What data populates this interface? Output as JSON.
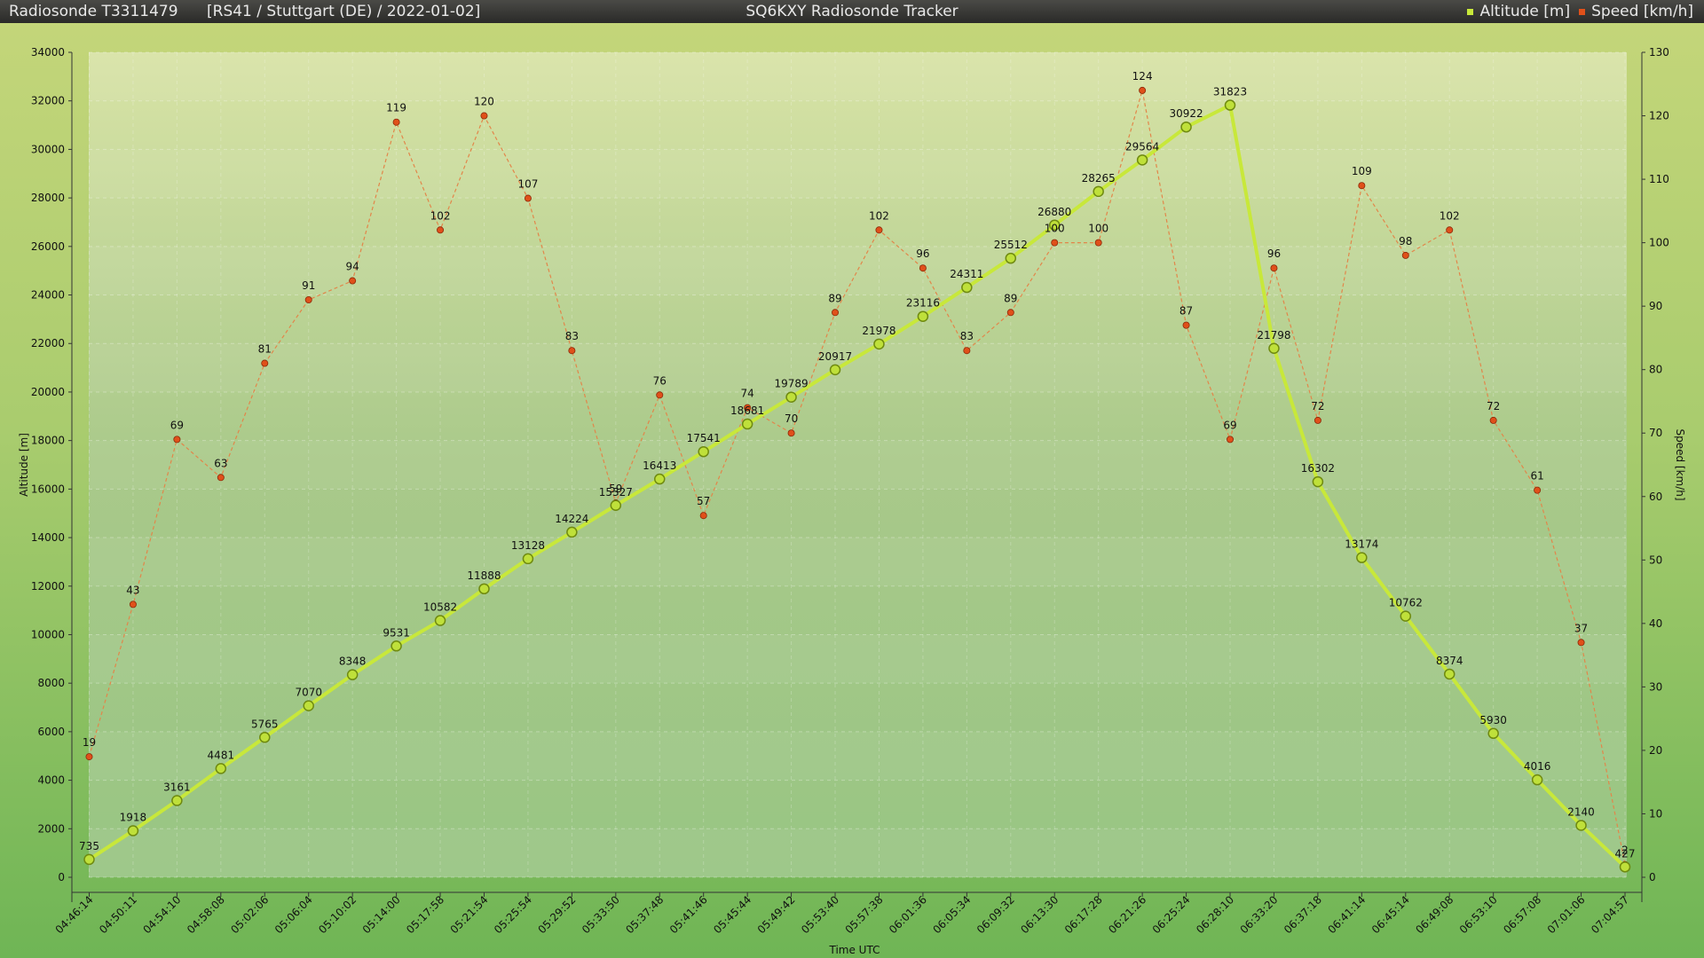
{
  "header": {
    "sonde": "Radiosonde T3311479",
    "info": "[RS41 / Stuttgart (DE) / 2022-01-02]",
    "title": "SQ6KXY Radiosonde Tracker",
    "legend_altitude": "Altitude [m]",
    "legend_speed": "Speed [km/h]"
  },
  "colors": {
    "altitude": "#c8e83a",
    "altitude_marker_stroke": "#6f8a10",
    "speed": "#e0501a",
    "speed_line": "#e2864a"
  },
  "chart_data": {
    "type": "line",
    "xlabel": "Time UTC",
    "ylabel_left": "Altitude [m]",
    "ylabel_right": "Speed [km/h]",
    "ylim_left": [
      0,
      34000
    ],
    "ylim_right": [
      0,
      130
    ],
    "yticks_left": [
      0,
      2000,
      4000,
      6000,
      8000,
      10000,
      12000,
      14000,
      16000,
      18000,
      20000,
      22000,
      24000,
      26000,
      28000,
      30000,
      32000,
      34000
    ],
    "yticks_right": [
      0,
      10,
      20,
      30,
      40,
      50,
      60,
      70,
      80,
      90,
      100,
      110,
      120,
      130
    ],
    "grid": true,
    "legend_position": "top-right",
    "categories": [
      "04:46:14",
      "04:50:11",
      "04:54:10",
      "04:58:08",
      "05:02:06",
      "05:06:04",
      "05:10:02",
      "05:14:00",
      "05:17:58",
      "05:21:54",
      "05:25:54",
      "05:29:52",
      "05:33:50",
      "05:37:48",
      "05:41:46",
      "05:45:44",
      "05:49:42",
      "05:53:40",
      "05:57:38",
      "06:01:36",
      "06:05:34",
      "06:09:32",
      "06:13:30",
      "06:17:28",
      "06:21:26",
      "06:25:24",
      "06:28:10",
      "06:33:20",
      "06:37:18",
      "06:41:14",
      "06:45:14",
      "06:49:08",
      "06:53:10",
      "06:57:08",
      "07:01:06",
      "07:04:57"
    ],
    "series": [
      {
        "name": "Altitude [m]",
        "axis": "left",
        "values": [
          735,
          1918,
          3161,
          4481,
          5765,
          7070,
          8348,
          9531,
          10582,
          11888,
          13128,
          14224,
          15327,
          16413,
          17541,
          18681,
          19789,
          20917,
          21978,
          23116,
          24311,
          25512,
          26880,
          28265,
          29564,
          30922,
          31823,
          21798,
          16302,
          13174,
          10762,
          8374,
          5930,
          4016,
          2140,
          427
        ]
      },
      {
        "name": "Speed [km/h]",
        "axis": "right",
        "values": [
          19,
          43,
          69,
          63,
          81,
          91,
          94,
          119,
          102,
          120,
          107,
          83,
          59,
          76,
          57,
          74,
          70,
          89,
          102,
          96,
          83,
          89,
          100,
          100,
          124,
          87,
          69,
          96,
          72,
          109,
          98,
          102,
          72,
          61,
          37,
          2
        ]
      }
    ]
  }
}
